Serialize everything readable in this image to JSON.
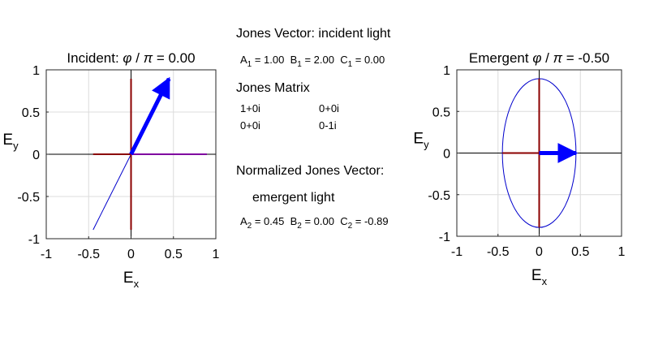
{
  "chart_data": [
    {
      "type": "line",
      "title": {
        "prefix": "Incident:",
        "phi": "φ",
        "sep": " / ",
        "pi": "π",
        "value_text": "=  0.00"
      },
      "phase_over_pi": 0.0,
      "xlabel": {
        "main": "E",
        "sub": "x"
      },
      "ylabel": {
        "main": "E",
        "sub": "y"
      },
      "xlim": [
        -1,
        1
      ],
      "ylim": [
        -1,
        1
      ],
      "xticks": [
        "-1",
        "-0.5",
        "0",
        "0.5",
        "1"
      ],
      "yticks": [
        "1",
        "0.5",
        "0",
        "-0.5",
        "-1"
      ],
      "grid": true,
      "components": {
        "Ax": 0.447,
        "Ay": 0.894
      },
      "series": [
        {
          "role": "trace",
          "color": "#0000cc",
          "points": [
            [
              -0.447,
              -0.894
            ],
            [
              0.447,
              0.894
            ]
          ]
        },
        {
          "role": "y-component",
          "color": "#8b0000",
          "points": [
            [
              0,
              -0.894
            ],
            [
              0,
              0.894
            ]
          ]
        },
        {
          "role": "x-component",
          "color": "#8b0000",
          "points": [
            [
              -0.447,
              0
            ],
            [
              0,
              0
            ]
          ]
        },
        {
          "role": "x-component-2",
          "color": "#8000a0",
          "points": [
            [
              0,
              0
            ],
            [
              0.894,
              0
            ]
          ]
        },
        {
          "role": "field-arrow",
          "color": "#0000ff",
          "from": [
            0,
            0
          ],
          "to": [
            0.447,
            0.894
          ]
        }
      ]
    },
    {
      "type": "line",
      "title": {
        "prefix": "Emergent",
        "phi": "φ",
        "sep": " / ",
        "pi": "π",
        "value_text": "=  -0.50"
      },
      "phase_over_pi": -0.5,
      "xlabel": {
        "main": "E",
        "sub": "x"
      },
      "ylabel": {
        "main": "E",
        "sub": "y"
      },
      "xlim": [
        -1,
        1
      ],
      "ylim": [
        -1,
        1
      ],
      "xticks": [
        "-1",
        "-0.5",
        "0",
        "0.5",
        "1"
      ],
      "yticks": [
        "1",
        "0.5",
        "0",
        "-0.5",
        "-1"
      ],
      "grid": true,
      "components": {
        "Ax": 0.447,
        "Ay": 0.894
      },
      "series": [
        {
          "role": "trace",
          "color": "#0000cc",
          "shape": "ellipse",
          "rx": 0.447,
          "ry": 0.894
        },
        {
          "role": "y-component",
          "color": "#8b0000",
          "points": [
            [
              0,
              -0.894
            ],
            [
              0,
              0.894
            ]
          ]
        },
        {
          "role": "x-component",
          "color": "#8b0000",
          "points": [
            [
              -0.447,
              0
            ],
            [
              0,
              0
            ]
          ]
        },
        {
          "role": "field-arrow",
          "color": "#0000ff",
          "from": [
            0,
            0
          ],
          "to": [
            0.447,
            0
          ]
        }
      ]
    }
  ],
  "info": {
    "incident_title": "Jones Vector: incident light",
    "incident_values": [
      {
        "name": "A",
        "sub": "1",
        "value": " = 1.00"
      },
      {
        "name": "B",
        "sub": "1",
        "value": " = 2.00"
      },
      {
        "name": "C",
        "sub": "1",
        "value": " = 0.00"
      }
    ],
    "matrix_title": "Jones Matrix",
    "matrix": [
      [
        "1+0i",
        "0+0i"
      ],
      [
        "0+0i",
        "0-1i"
      ]
    ],
    "normalized_title": "Normalized Jones Vector:",
    "emergent_label": "emergent light",
    "emergent_values": [
      {
        "name": "A",
        "sub": "2",
        "value": " = 0.45"
      },
      {
        "name": "B",
        "sub": "2",
        "value": " = 0.00"
      },
      {
        "name": "C",
        "sub": "2",
        "value": " = -0.89"
      }
    ]
  }
}
